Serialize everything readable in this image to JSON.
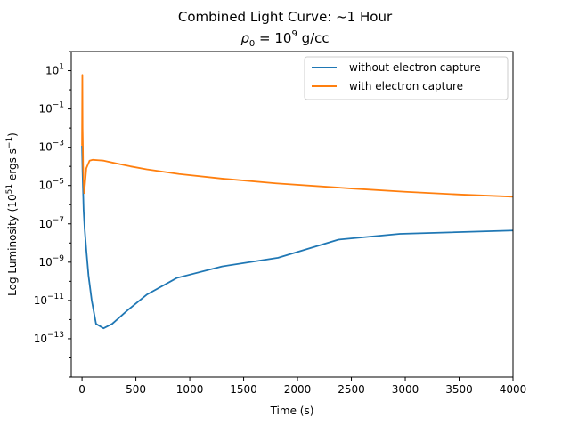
{
  "chart_data": {
    "type": "line",
    "title_line1": "Combined Light Curve: ~1 Hour",
    "title_line2": {
      "symbol": "ρ",
      "sub": "0",
      "eq": " = 10",
      "sup": "9",
      "unit": " g/cc"
    },
    "xlabel": "Time (s)",
    "ylabel": {
      "pre": "Log Luminosity (10",
      "sup1": "51",
      "mid": " ergs s",
      "sup2": "−1",
      "post": ")"
    },
    "xlim": [
      -100,
      4000
    ],
    "ylim_log10": [
      -15,
      2
    ],
    "yscale": "log",
    "x_ticks": [
      0,
      500,
      1000,
      1500,
      2000,
      2500,
      3000,
      3500,
      4000
    ],
    "x_tick_labels": [
      "0",
      "500",
      "1000",
      "1500",
      "2000",
      "2500",
      "3000",
      "3500",
      "4000"
    ],
    "y_ticks_exp": [
      1,
      -1,
      -3,
      -5,
      -7,
      -9,
      -11,
      -13
    ],
    "y_tick_labels": [
      {
        "base": "10",
        "exp": "1"
      },
      {
        "base": "10",
        "exp": "−1"
      },
      {
        "base": "10",
        "exp": "−3"
      },
      {
        "base": "10",
        "exp": "−5"
      },
      {
        "base": "10",
        "exp": "−7"
      },
      {
        "base": "10",
        "exp": "−9"
      },
      {
        "base": "10",
        "exp": "−11"
      },
      {
        "base": "10",
        "exp": "−13"
      }
    ],
    "legend_placement": "top-right",
    "grid": false,
    "series": [
      {
        "name": "without electron capture",
        "color": "#1f77b4",
        "x": [
          0,
          5,
          10,
          15,
          25,
          40,
          60,
          90,
          130,
          200,
          280,
          420,
          600,
          880,
          1300,
          1820,
          2380,
          2950,
          4000
        ],
        "y": [
          0.0012,
          5e-05,
          5e-06,
          5e-07,
          5e-08,
          4e-09,
          2e-10,
          1e-11,
          6e-13,
          3.5e-13,
          6e-13,
          3e-12,
          2e-11,
          1.5e-10,
          6e-10,
          1.7e-09,
          1.5e-08,
          3e-08,
          4.5e-08
        ]
      },
      {
        "name": "with electron capture",
        "color": "#ff7f0e",
        "x": [
          0,
          3,
          5,
          8,
          10,
          20,
          40,
          70,
          100,
          150,
          200,
          300,
          450,
          600,
          900,
          1300,
          1800,
          2500,
          3000,
          3500,
          4000
        ],
        "y": [
          0.0012,
          6,
          0.01,
          0.001,
          0.0001,
          4e-06,
          8e-05,
          0.0002,
          0.00022,
          0.00021,
          0.0002,
          0.00015,
          0.0001,
          7e-05,
          4e-05,
          2.3e-05,
          1.3e-05,
          7e-06,
          4.7e-06,
          3.4e-06,
          2.6e-06
        ]
      }
    ]
  }
}
